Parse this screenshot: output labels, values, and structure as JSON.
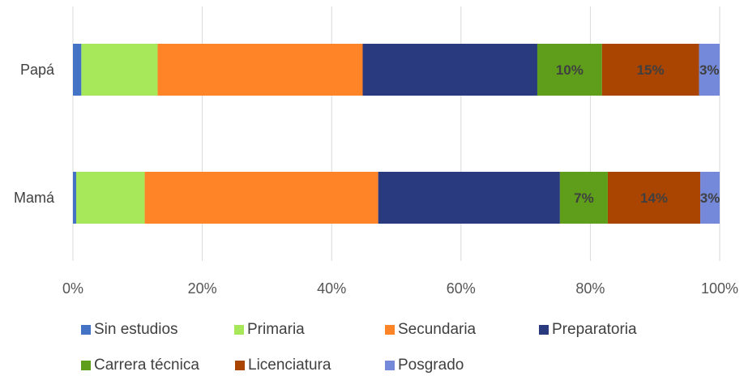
{
  "chart_data": {
    "type": "bar",
    "orientation": "horizontal",
    "stacked": "percent",
    "categories": [
      "Papá",
      "Mamá"
    ],
    "series": [
      {
        "name": "Sin estudios",
        "color": "#4472C4",
        "values": [
          1.3,
          0.5
        ],
        "labels": [
          "",
          ""
        ]
      },
      {
        "name": "Primaria",
        "color": "#A6E85A",
        "values": [
          11.8,
          10.6
        ],
        "labels": [
          "",
          ""
        ]
      },
      {
        "name": "Secundaria",
        "color": "#FF8427",
        "values": [
          31.7,
          36.1
        ],
        "labels": [
          "",
          ""
        ]
      },
      {
        "name": "Preparatoria",
        "color": "#2A3A7E",
        "values": [
          27.0,
          28.1
        ],
        "labels": [
          "",
          ""
        ]
      },
      {
        "name": "Carrera técnica",
        "color": "#5E9E1A",
        "values": [
          10.0,
          7.4
        ],
        "labels": [
          "10%",
          "7%"
        ]
      },
      {
        "name": "Licenciatura",
        "color": "#A94500",
        "values": [
          15.0,
          14.3
        ],
        "labels": [
          "15%",
          "14%"
        ]
      },
      {
        "name": "Posgrado",
        "color": "#7489D9",
        "values": [
          3.2,
          3.0
        ],
        "labels": [
          "3%",
          "3%"
        ]
      }
    ],
    "xticks": [
      "0%",
      "20%",
      "40%",
      "60%",
      "80%",
      "100%"
    ],
    "xlim": [
      0,
      100
    ],
    "grid": true,
    "legend_position": "bottom"
  }
}
